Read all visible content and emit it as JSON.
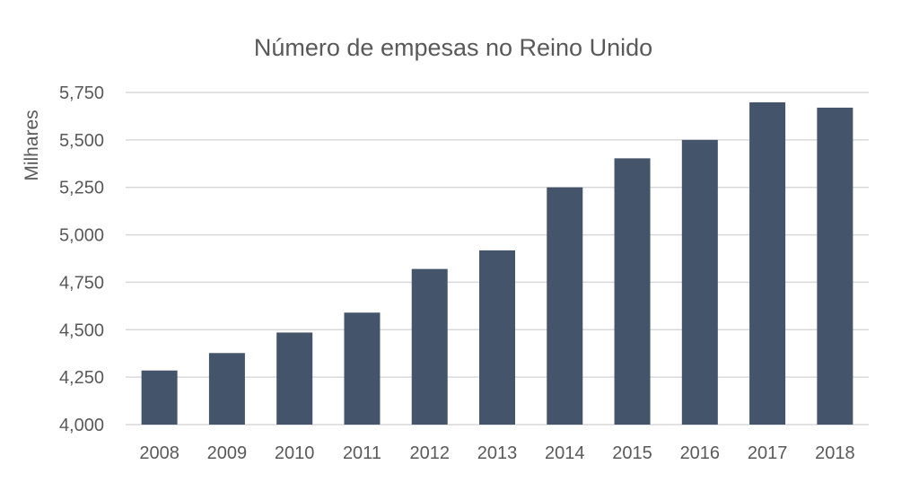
{
  "chart_data": {
    "type": "bar",
    "title": "Número de empesas no Reino Unido",
    "ylabel": "Milhares",
    "xlabel": "",
    "categories": [
      "2008",
      "2009",
      "2010",
      "2011",
      "2012",
      "2013",
      "2014",
      "2015",
      "2016",
      "2017",
      "2018"
    ],
    "values": [
      4285,
      4377,
      4485,
      4590,
      4820,
      4918,
      5250,
      5403,
      5500,
      5698,
      5670
    ],
    "ylim": [
      4000,
      5750
    ],
    "yticks": [
      4000,
      4250,
      4500,
      4750,
      5000,
      5250,
      5500,
      5750
    ],
    "ytick_labels": [
      "4,000",
      "4,250",
      "4,500",
      "4,750",
      "5,000",
      "5,250",
      "5,500",
      "5,750"
    ],
    "grid": true,
    "legend": "none",
    "colors": {
      "bar": "#44546a"
    }
  }
}
